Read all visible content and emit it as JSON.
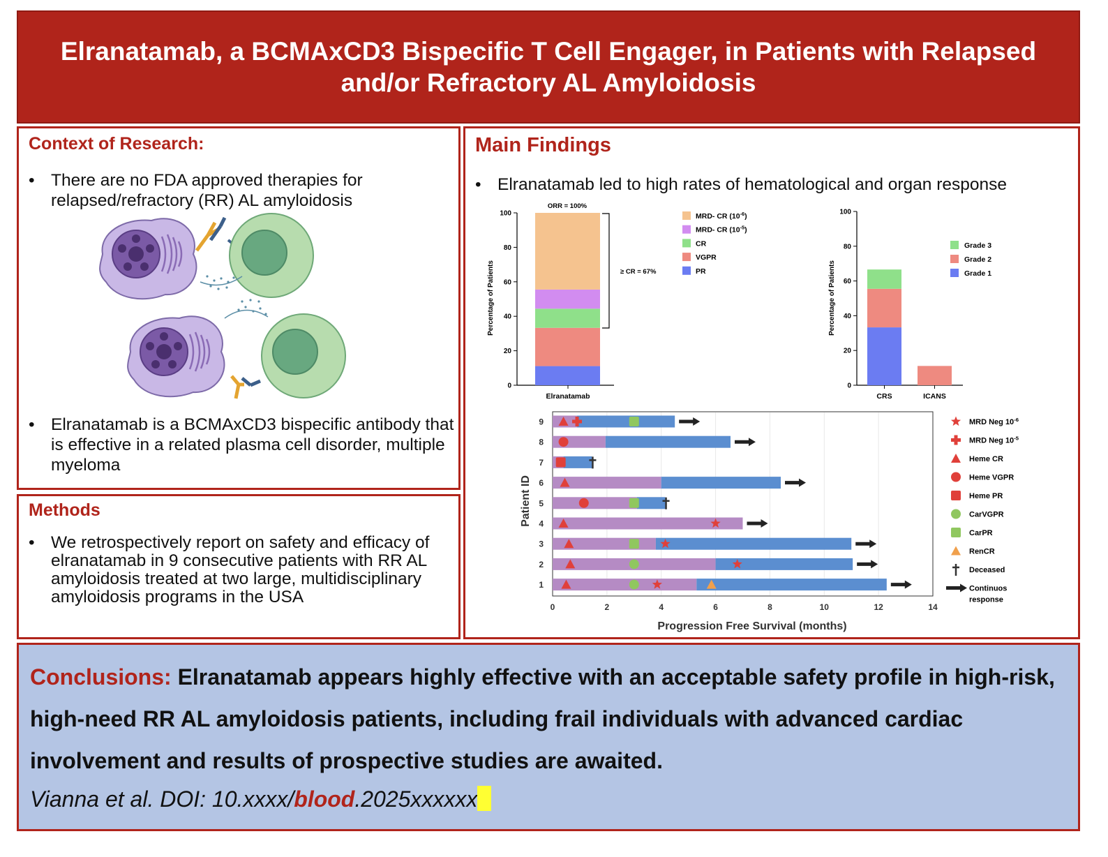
{
  "header": {
    "title": "Elranatamab, a BCMAxCD3 Bispecific T Cell Engager, in Patients with Relapsed and/or Refractory AL Amyloidosis"
  },
  "context": {
    "heading": "Context of Research:",
    "bullet1": "There are no FDA approved therapies for relapsed/refractory (RR) AL amyloidosis",
    "bullet2": "Elranatamab is a BCMAxCD3 bispecific antibody that is effective in a related plasma cell disorder, multiple myeloma"
  },
  "methods": {
    "heading": "Methods",
    "bullet1": "We retrospectively report on safety and efficacy of elranatamab in 9 consecutive patients with RR AL amyloidosis treated at two large, multidisciplinary amyloidosis programs in the USA"
  },
  "findings": {
    "heading": "Main Findings",
    "bullet1": "Elranatamab led to high rates of hematological and organ response"
  },
  "chart_data": [
    {
      "type": "bar",
      "stacked": true,
      "ylabel": "Percentage of Patients",
      "ylim": [
        0,
        100
      ],
      "yticks": [
        0,
        20,
        40,
        60,
        80,
        100
      ],
      "categories": [
        "Elranatamab"
      ],
      "series": [
        {
          "name": "PR",
          "values": [
            11.1
          ],
          "color": "#6b7cf2"
        },
        {
          "name": "VGPR",
          "values": [
            22.2
          ],
          "color": "#ee8a80"
        },
        {
          "name": "CR",
          "values": [
            11.1
          ],
          "color": "#8fe08a"
        },
        {
          "name": "MRD- CR (10",
          "sup": "-5",
          "suffix": ")",
          "values": [
            11.1
          ],
          "color": "#d28cf0"
        },
        {
          "name": "MRD- CR (10",
          "sup": "-6",
          "suffix": ")",
          "values": [
            44.5
          ],
          "color": "#f5c38f"
        }
      ],
      "annotations": [
        "ORR = 100%",
        "≥ CR = 67%"
      ]
    },
    {
      "type": "bar",
      "stacked": true,
      "ylabel": "Percentage of Patients",
      "ylim": [
        0,
        100
      ],
      "yticks": [
        0,
        20,
        40,
        60,
        80,
        100
      ],
      "categories": [
        "CRS",
        "ICANS"
      ],
      "series": [
        {
          "name": "Grade 1",
          "values": [
            33.3,
            0
          ],
          "color": "#6b7cf2"
        },
        {
          "name": "Grade 2",
          "values": [
            22.2,
            11.1
          ],
          "color": "#ee8a80"
        },
        {
          "name": "Grade 3",
          "values": [
            11.1,
            0
          ],
          "color": "#8fe08a"
        }
      ]
    },
    {
      "type": "swimmer",
      "xlabel": "Progression Free Survival (months)",
      "ylabel": "Patient ID",
      "xlim": [
        0,
        14
      ],
      "xticks": [
        0,
        2,
        4,
        6,
        8,
        10,
        12,
        14
      ],
      "colors": {
        "prior": "#b58bc4",
        "after": "#5b8ed0",
        "marker": "#e0403a",
        "car": "#90c75f",
        "ren": "#f0a04c"
      },
      "patients": [
        {
          "id": "9",
          "purple_end": 0.9,
          "end": 4.5,
          "arrow": true,
          "deceased": false,
          "markers": [
            {
              "t": "heme_cr",
              "x": 0.4
            },
            {
              "t": "mrd5",
              "x": 0.9
            },
            {
              "t": "car_pr",
              "x": 3.0
            }
          ]
        },
        {
          "id": "8",
          "purple_end": 1.95,
          "end": 6.55,
          "arrow": true,
          "deceased": false,
          "markers": [
            {
              "t": "heme_vgpr",
              "x": 0.4
            }
          ]
        },
        {
          "id": "7",
          "purple_end": 0.4,
          "end": 1.45,
          "arrow": false,
          "deceased": true,
          "markers": [
            {
              "t": "heme_pr",
              "x": 0.3
            }
          ]
        },
        {
          "id": "6",
          "purple_end": 4.0,
          "end": 8.4,
          "arrow": true,
          "deceased": false,
          "markers": [
            {
              "t": "heme_cr",
              "x": 0.45
            }
          ]
        },
        {
          "id": "5",
          "purple_end": 3.1,
          "end": 4.15,
          "arrow": false,
          "deceased": true,
          "markers": [
            {
              "t": "heme_vgpr",
              "x": 1.15
            },
            {
              "t": "car_pr",
              "x": 3.0
            }
          ]
        },
        {
          "id": "4",
          "purple_end": 7.0,
          "end": 7.0,
          "arrow": true,
          "deceased": false,
          "markers": [
            {
              "t": "heme_cr",
              "x": 0.4
            },
            {
              "t": "mrd6",
              "x": 6.0
            }
          ]
        },
        {
          "id": "3",
          "purple_end": 3.8,
          "end": 11.0,
          "arrow": true,
          "deceased": false,
          "markers": [
            {
              "t": "heme_cr",
              "x": 0.6
            },
            {
              "t": "car_pr",
              "x": 3.0
            },
            {
              "t": "mrd6",
              "x": 4.15
            }
          ]
        },
        {
          "id": "2",
          "purple_end": 6.0,
          "end": 11.05,
          "arrow": true,
          "deceased": false,
          "markers": [
            {
              "t": "heme_cr",
              "x": 0.65
            },
            {
              "t": "car_vgpr",
              "x": 3.0
            },
            {
              "t": "mrd6",
              "x": 6.8
            }
          ]
        },
        {
          "id": "1",
          "purple_end": 5.3,
          "end": 12.3,
          "arrow": true,
          "deceased": false,
          "markers": [
            {
              "t": "heme_cr",
              "x": 0.5
            },
            {
              "t": "car_vgpr",
              "x": 3.0
            },
            {
              "t": "mrd6",
              "x": 3.85
            },
            {
              "t": "ren_cr",
              "x": 5.85
            }
          ]
        }
      ],
      "legend": [
        {
          "t": "mrd6",
          "label": "MRD Neg 10",
          "sup": "-6"
        },
        {
          "t": "mrd5",
          "label": "MRD Neg 10",
          "sup": "-5"
        },
        {
          "t": "heme_cr",
          "label": "Heme CR"
        },
        {
          "t": "heme_vgpr",
          "label": "Heme VGPR"
        },
        {
          "t": "heme_pr",
          "label": "Heme PR"
        },
        {
          "t": "car_vgpr",
          "label": "CarVGPR"
        },
        {
          "t": "car_pr",
          "label": "CarPR"
        },
        {
          "t": "ren_cr",
          "label": "RenCR"
        },
        {
          "t": "deceased",
          "label": "Deceased"
        },
        {
          "t": "arrow",
          "label": "Continuos",
          "label2": "response"
        }
      ]
    }
  ],
  "conclusions": {
    "lead": "Conclusions:",
    "text": "Elranatamab appears highly effective with an acceptable safety profile in high-risk, high-need RR AL amyloidosis patients, including frail individuals with advanced cardiac involvement and results of prospective studies are awaited.",
    "citation_prefix": "Vianna et al. DOI: 10.xxxx/",
    "citation_journal": "blood",
    "citation_suffix": ".2025xxxxxx"
  }
}
